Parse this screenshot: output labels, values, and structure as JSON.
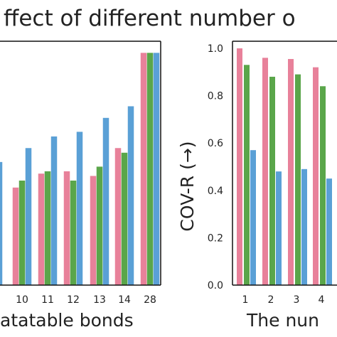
{
  "title": "ffect of different number o",
  "colors": {
    "pink": "#e8819a",
    "green": "#5aa64a",
    "blue": "#5aa0d6"
  },
  "chart_data": [
    {
      "type": "bar",
      "xlabel": "atatable bonds",
      "ylabel": "",
      "ylim": [
        0,
        1.05
      ],
      "categories": [
        "",
        "10",
        "11",
        "12",
        "13",
        "14",
        "28"
      ],
      "series": [
        {
          "values": [
            null,
            0.42,
            0.48,
            0.49,
            0.47,
            0.59,
            1.0
          ]
        },
        {
          "values": [
            null,
            0.45,
            0.49,
            0.45,
            0.51,
            0.57,
            1.0
          ]
        },
        {
          "values": [
            0.53,
            0.59,
            0.64,
            0.66,
            0.72,
            0.77,
            1.0
          ]
        }
      ]
    },
    {
      "type": "bar",
      "xlabel": "The nun",
      "ylabel": "COV-R (→)",
      "ylim": [
        0,
        1.03
      ],
      "yticks": [
        "0.0",
        "0.2",
        "0.4",
        "0.6",
        "0.8",
        "1.0"
      ],
      "categories": [
        "1",
        "2",
        "3",
        "4"
      ],
      "series": [
        {
          "values": [
            1.0,
            0.96,
            0.955,
            0.92
          ]
        },
        {
          "values": [
            0.93,
            0.88,
            0.89,
            0.84
          ]
        },
        {
          "values": [
            0.57,
            0.48,
            0.49,
            0.45
          ]
        }
      ]
    }
  ]
}
